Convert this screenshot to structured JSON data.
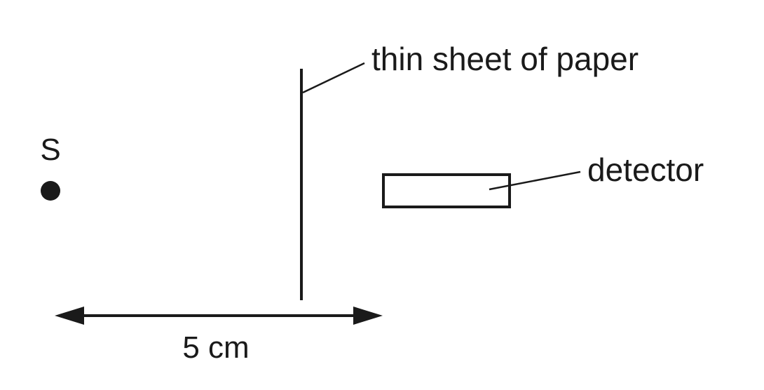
{
  "labels": {
    "source": "S",
    "paper": "thin sheet of paper",
    "detector": "detector",
    "distance": "5 cm"
  },
  "colors": {
    "ink": "#1a1a1a",
    "background": "#ffffff"
  }
}
